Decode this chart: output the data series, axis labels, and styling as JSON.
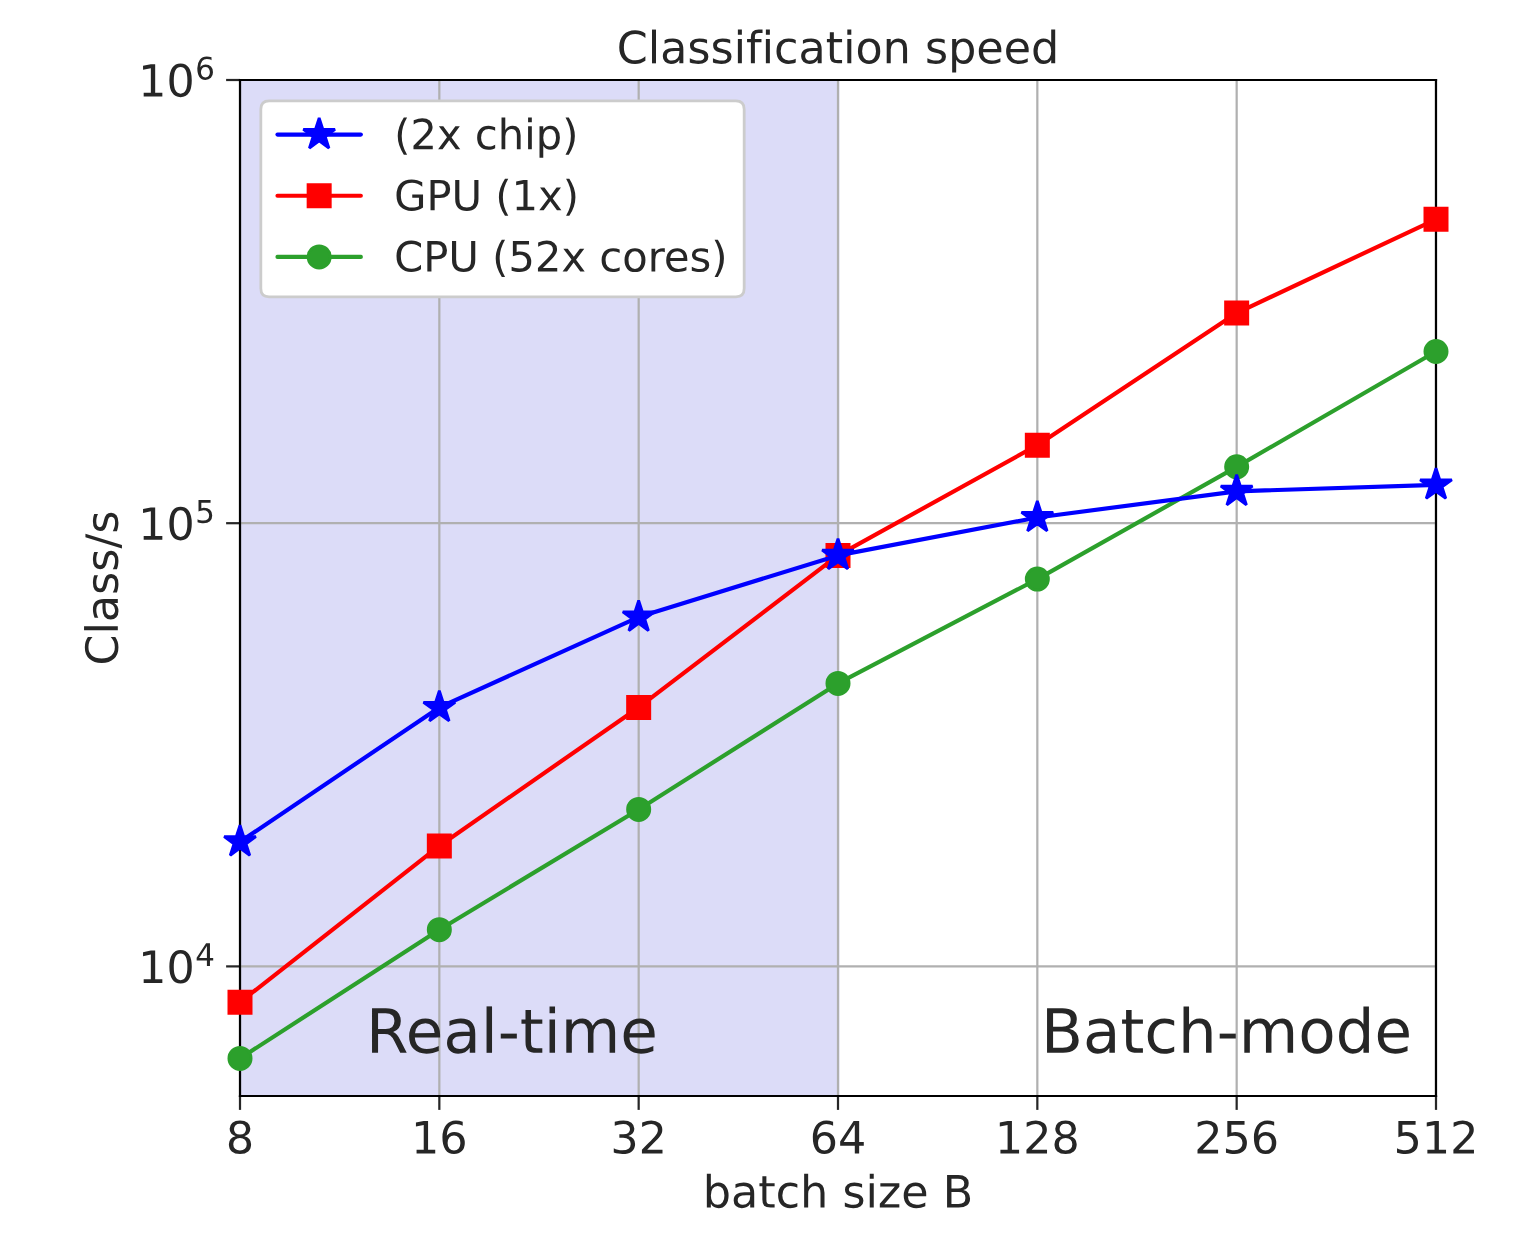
{
  "chart_data": {
    "type": "line",
    "title": "Classification speed",
    "xlabel": "batch size B",
    "ylabel": "Class/s",
    "x": [
      8,
      16,
      32,
      64,
      128,
      256,
      512
    ],
    "series": [
      {
        "name": "(2x chip)",
        "color": "#0000ff",
        "marker": "star",
        "values": [
          19100,
          38400,
          61400,
          84600,
          103000,
          118000,
          122000
        ]
      },
      {
        "name": "GPU (1x)",
        "color": "#ff0000",
        "marker": "square",
        "values": [
          8300,
          18700,
          38400,
          84600,
          150000,
          298000,
          485000
        ]
      },
      {
        "name": "CPU (52x cores)",
        "color": "#2ca02c",
        "marker": "circle",
        "values": [
          6200,
          12100,
          22600,
          43500,
          74800,
          134000,
          244000
        ]
      }
    ],
    "log": "xy",
    "xlim": [
      8,
      512
    ],
    "ylim": [
      5100,
      1000000
    ],
    "xticks": [
      8,
      16,
      32,
      64,
      128,
      256,
      512
    ],
    "yticks": [
      {
        "value": 10000,
        "label": "10$^{4}$"
      },
      {
        "value": 100000,
        "label": "10$^{5}$"
      },
      {
        "value": 1000000,
        "label": "10$^{6}$"
      }
    ],
    "bands": [
      {
        "axis": "x",
        "from": 8,
        "to": 64,
        "label": "Real-time",
        "color": "#dcdcf8"
      }
    ],
    "annotations": [
      "Batch-mode"
    ],
    "grid": true,
    "legend": "top left",
    "line_style": "solid"
  }
}
